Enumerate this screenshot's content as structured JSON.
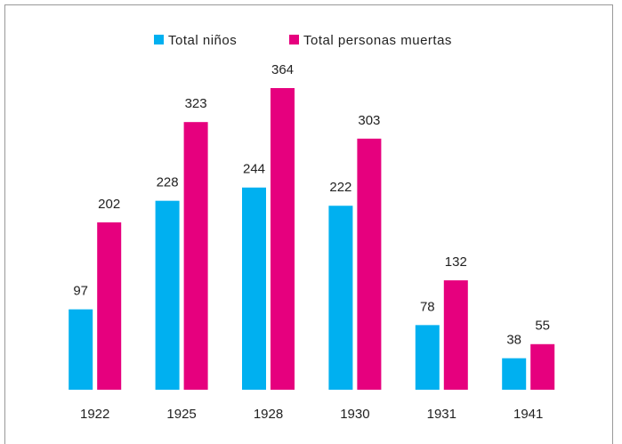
{
  "chart_data": {
    "type": "bar",
    "categories": [
      "1922",
      "1925",
      "1928",
      "1930",
      "1931",
      "1941"
    ],
    "series": [
      {
        "name": "Total niños",
        "color": "#00b0f0",
        "values": [
          97,
          228,
          244,
          222,
          78,
          38
        ]
      },
      {
        "name": "Total personas muertas",
        "color": "#e6007e",
        "values": [
          202,
          323,
          364,
          303,
          132,
          55
        ]
      }
    ],
    "legend": "top"
  }
}
